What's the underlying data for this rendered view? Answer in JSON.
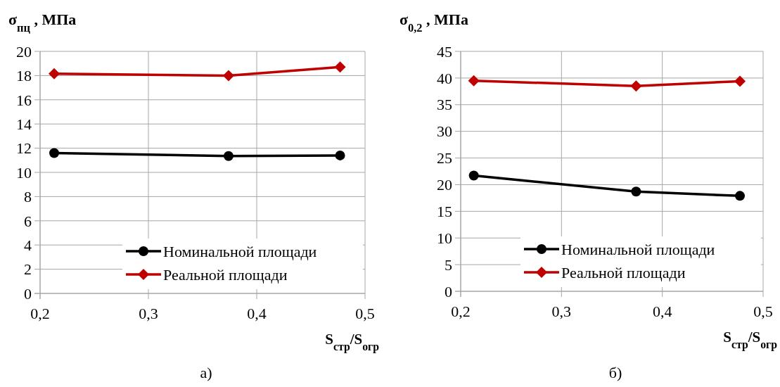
{
  "chart_data": [
    {
      "type": "line",
      "title": "σ$_{пц}$ , МПа",
      "xlabel": "S$_{стр}$/S$_{огр}$",
      "annotations": [
        "а)"
      ],
      "xlim": [
        0.2,
        0.5
      ],
      "xticks": [
        {
          "value": 0.2,
          "label": "0,2"
        },
        {
          "value": 0.3,
          "label": "0,3"
        },
        {
          "value": 0.4,
          "label": "0,4"
        },
        {
          "value": 0.5,
          "label": "0,5"
        }
      ],
      "ylim": [
        0,
        20
      ],
      "yticks": [
        0,
        2,
        4,
        6,
        8,
        10,
        12,
        14,
        16,
        18,
        20
      ],
      "grid": true,
      "legend": "bottom right",
      "x": [
        0.213,
        0.374,
        0.477
      ],
      "series": [
        {
          "name": "Номинальной площади",
          "color": "#000000",
          "marker": "circle",
          "values": [
            11.6,
            11.35,
            11.4
          ]
        },
        {
          "name": "Реальной площади",
          "color": "#c00000",
          "marker": "diamond",
          "values": [
            18.15,
            18.0,
            18.7
          ]
        }
      ]
    },
    {
      "type": "line",
      "title": "σ$_{0,2}$ , МПа",
      "xlabel": "S$_{стр}$/S$_{огр}$",
      "annotations": [
        "б)"
      ],
      "xlim": [
        0.2,
        0.5
      ],
      "xticks": [
        {
          "value": 0.2,
          "label": "0,2"
        },
        {
          "value": 0.3,
          "label": "0,3"
        },
        {
          "value": 0.4,
          "label": "0,4"
        },
        {
          "value": 0.5,
          "label": "0,5"
        }
      ],
      "ylim": [
        0,
        45
      ],
      "yticks": [
        0,
        5,
        10,
        15,
        20,
        25,
        30,
        35,
        40,
        45
      ],
      "grid": true,
      "legend": "bottom right",
      "x": [
        0.213,
        0.374,
        0.477
      ],
      "series": [
        {
          "name": "Номинальной площади",
          "color": "#000000",
          "marker": "circle",
          "values": [
            21.7,
            18.7,
            17.9
          ]
        },
        {
          "name": "Реальной площади",
          "color": "#c00000",
          "marker": "diamond",
          "values": [
            39.5,
            38.5,
            39.4
          ]
        }
      ]
    }
  ]
}
